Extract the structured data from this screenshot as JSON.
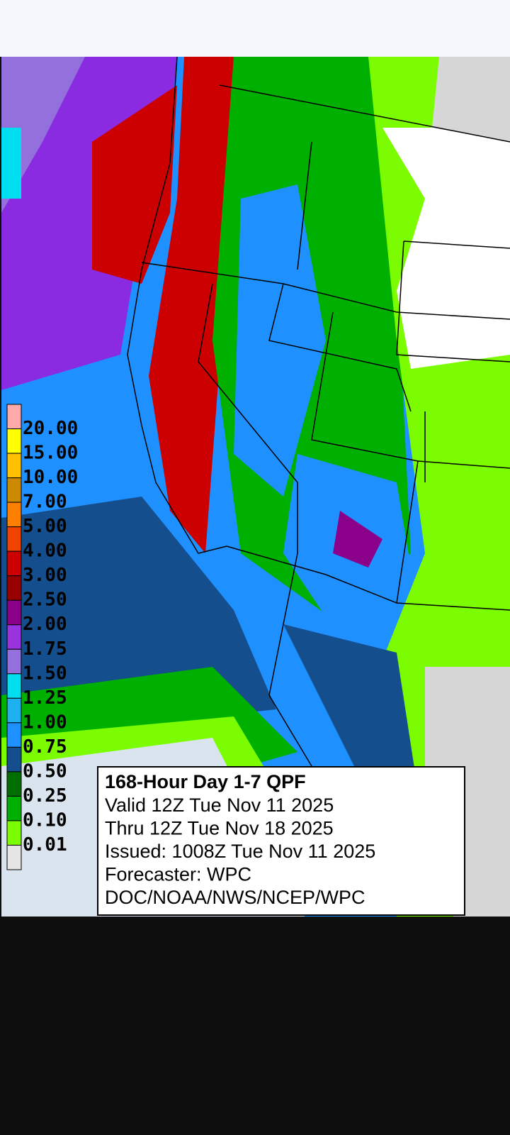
{
  "legend": {
    "labels": [
      "20.00",
      "15.00",
      "10.00",
      "7.00",
      "5.00",
      "4.00",
      "3.00",
      "2.50",
      "2.00",
      "1.75",
      "1.50",
      "1.25",
      "1.00",
      "0.75",
      "0.50",
      "0.25",
      "0.10",
      "0.01"
    ],
    "colors": [
      "#ffaaaa",
      "#ffff00",
      "#ffc000",
      "#cc8a00",
      "#ff7f00",
      "#ee4400",
      "#cc0000",
      "#990000",
      "#8a008a",
      "#9933dd",
      "#9370db",
      "#00dfef",
      "#1fb0ef",
      "#1e90ff",
      "#144e8c",
      "#006f00",
      "#00b000",
      "#7cfc00",
      "#e5e5e5"
    ]
  },
  "info": {
    "title": "168-Hour Day 1-7 QPF",
    "lines": [
      "Valid 12Z Tue Nov 11 2025",
      "Thru 12Z Tue Nov 18 2025",
      "Issued: 1008Z Tue Nov 11 2025",
      "Forecaster: WPC",
      "DOC/NOAA/NWS/NCEP/WPC"
    ]
  }
}
